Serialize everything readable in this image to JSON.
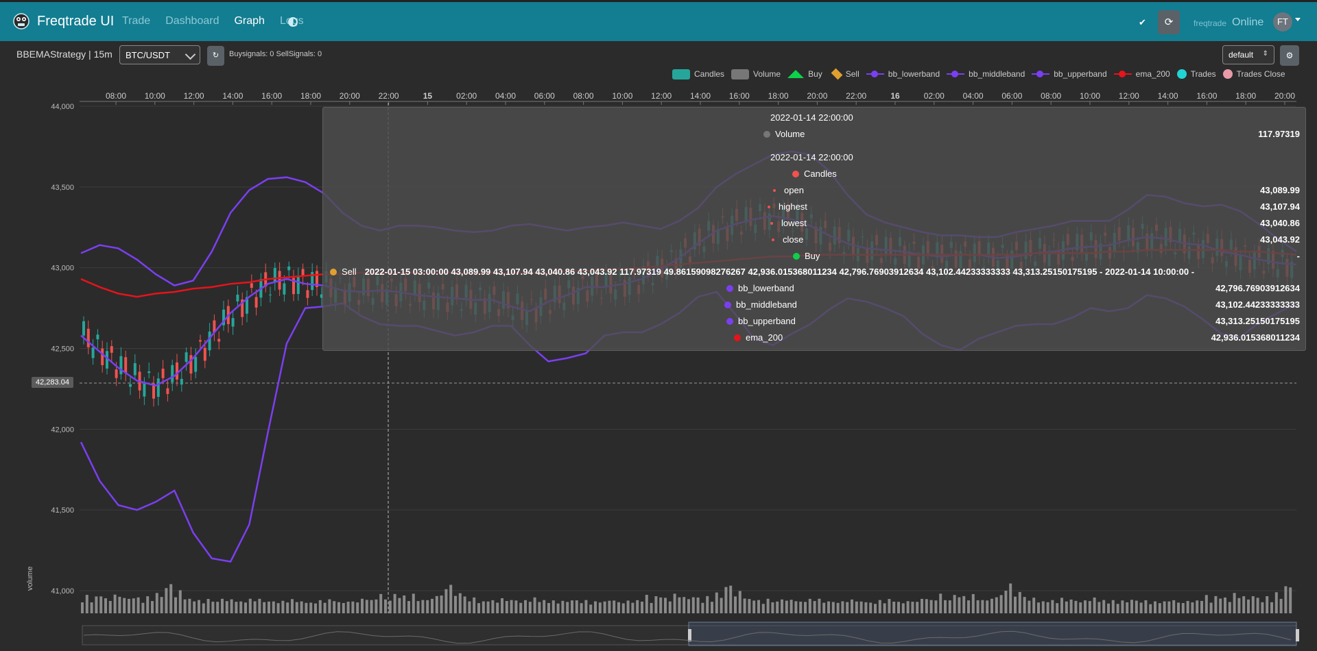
{
  "navbar": {
    "brand": "Freqtrade UI",
    "links": [
      {
        "label": "Trade",
        "active": false
      },
      {
        "label": "Dashboard",
        "active": false
      },
      {
        "label": "Graph",
        "active": true
      },
      {
        "label": "Logs",
        "active": false
      }
    ],
    "check_icon": "check-icon",
    "refresh_icon": "refresh-icon",
    "bot_name": "freqtrade",
    "bot_status": "Online",
    "avatar": "FT"
  },
  "toolbar": {
    "strategy": "BBEMAStrategy | 15m",
    "pair": "BTC/USDT",
    "reload_icon": "reload-icon",
    "signals": "Buysignals: 0   SellSignals: 0",
    "plot_config": "default",
    "settings_icon": "gear-icon"
  },
  "legend": [
    {
      "label": "Candles",
      "symbol": "box",
      "color": "#26a69a"
    },
    {
      "label": "Volume",
      "symbol": "box",
      "color": "#777777"
    },
    {
      "label": "Buy",
      "symbol": "triangle",
      "color": "#0ed04a"
    },
    {
      "label": "Sell",
      "symbol": "diamond",
      "color": "#e0a030"
    },
    {
      "label": "bb_lowerband",
      "symbol": "line",
      "color": "#7b3ff2"
    },
    {
      "label": "bb_middleband",
      "symbol": "line",
      "color": "#7b3ff2"
    },
    {
      "label": "bb_upperband",
      "symbol": "line",
      "color": "#7b3ff2"
    },
    {
      "label": "ema_200",
      "symbol": "line",
      "color": "#e8131b"
    },
    {
      "label": "Trades",
      "symbol": "circle",
      "color": "#22d3d3"
    },
    {
      "label": "Trades Close",
      "symbol": "circle",
      "color": "#e89aa8"
    }
  ],
  "chart_data": {
    "type": "candlestick",
    "x_ticks": [
      "08:00",
      "10:00",
      "12:00",
      "14:00",
      "16:00",
      "18:00",
      "20:00",
      "22:00",
      "15",
      "02:00",
      "04:00",
      "06:00",
      "08:00",
      "10:00",
      "12:00",
      "14:00",
      "16:00",
      "18:00",
      "20:00",
      "22:00",
      "16",
      "02:00",
      "04:00",
      "06:00",
      "08:00",
      "10:00",
      "12:00",
      "14:00",
      "16:00",
      "18:00",
      "20:00"
    ],
    "y_ticks": [
      "44,000",
      "43,500",
      "43,000",
      "42,500",
      "42,000",
      "41,500",
      "41,000"
    ],
    "ylim": [
      41000,
      44000
    ],
    "y2_label": "volume",
    "crosshair_price": "42,283.04",
    "colors": {
      "up": "#26a69a",
      "down": "#ef5350",
      "bands": "#7b3ff2",
      "ema": "#e8131b",
      "volume": "#8a8a8a"
    },
    "series": [
      {
        "name": "bb_upperband",
        "values": [
          43090,
          43140,
          43120,
          43050,
          42960,
          42890,
          42920,
          43100,
          43340,
          43480,
          43550,
          43560,
          43530,
          43460,
          43340,
          43260,
          43230,
          43260,
          43260,
          43250,
          43230,
          43220,
          43230,
          43260,
          43270,
          43250,
          43230,
          43250,
          43260,
          43280,
          43260,
          43240,
          43290,
          43370,
          43500,
          43580,
          43640,
          43700,
          43720,
          43700,
          43600,
          43450,
          43330,
          43280,
          43250,
          43220,
          43200,
          43200,
          43190,
          43190,
          43220,
          43240,
          43260,
          43290,
          43290,
          43290,
          43360,
          43450,
          43440,
          43400,
          43380,
          43390,
          43350,
          43270,
          43180,
          43100
        ]
      },
      {
        "name": "bb_middleband",
        "values": [
          42580,
          42480,
          42380,
          42300,
          42270,
          42330,
          42440,
          42580,
          42720,
          42820,
          42900,
          42930,
          42900,
          42890,
          42860,
          42850,
          42860,
          42850,
          42830,
          42820,
          42810,
          42800,
          42800,
          42760,
          42730,
          42790,
          42830,
          42880,
          42880,
          42900,
          42930,
          42990,
          43060,
          43150,
          43230,
          43270,
          43300,
          43320,
          43300,
          43260,
          43200,
          43150,
          43120,
          43110,
          43100,
          43080,
          43070,
          43080,
          43080,
          43060,
          43070,
          43090,
          43100,
          43120,
          43130,
          43140,
          43170,
          43190,
          43180,
          43150,
          43140,
          43100,
          43080,
          43050,
          43030,
          43020
        ]
      },
      {
        "name": "bb_lowerband",
        "values": [
          41920,
          41680,
          41530,
          41500,
          41550,
          41620,
          41360,
          41200,
          41180,
          41410,
          41980,
          42530,
          42750,
          42760,
          42780,
          42700,
          42650,
          42640,
          42640,
          42610,
          42580,
          42600,
          42640,
          42640,
          42520,
          42420,
          42440,
          42470,
          42580,
          42600,
          42600,
          42650,
          42720,
          42820,
          42850,
          42710,
          42560,
          42520,
          42590,
          42650,
          42740,
          42810,
          42790,
          42750,
          42700,
          42590,
          42520,
          42490,
          42560,
          42600,
          42640,
          42650,
          42650,
          42690,
          42750,
          42730,
          42750,
          42830,
          42810,
          42760,
          42680,
          42590,
          42570,
          42660,
          42720,
          42780
        ]
      },
      {
        "name": "ema_200",
        "values": [
          42930,
          42880,
          42840,
          42820,
          42840,
          42850,
          42870,
          42880,
          42900,
          42910,
          42930,
          42940,
          42950,
          42960,
          42960,
          42970,
          42970,
          42970,
          42970,
          42970,
          42970,
          42970,
          42970,
          42970,
          42970,
          42970,
          42980,
          42980,
          42990,
          42990,
          43000,
          43010,
          43020,
          43030,
          43040,
          43050,
          43060,
          43070,
          43070,
          43080,
          43080,
          43080,
          43080,
          43080,
          43080,
          43080,
          43080,
          43080,
          43080,
          43080,
          43080,
          43090,
          43090,
          43090,
          43090,
          43100,
          43100,
          43110,
          43110,
          43110,
          43110,
          43110,
          43100,
          43100,
          43090,
          43080
        ]
      }
    ],
    "volume_levels": [
      0.35,
      0.5,
      0.3,
      0.45,
      0.55,
      0.4,
      0.3,
      0.6,
      0.45,
      0.5,
      0.35,
      0.55,
      0.4,
      0.3,
      0.45,
      0.35,
      0.6,
      0.5,
      0.85,
      1.0,
      0.5,
      0.7,
      0.45,
      0.35,
      0.4,
      0.3,
      0.25,
      0.35,
      0.3,
      0.25,
      0.4,
      0.3,
      0.35,
      0.3,
      0.25,
      0.3,
      0.35,
      0.4,
      0.35,
      0.3,
      0.25,
      0.3,
      0.2,
      0.3,
      0.25,
      0.35,
      0.3,
      0.25,
      0.3,
      0.2,
      0.25,
      0.3,
      0.25,
      0.35,
      0.3,
      0.25,
      0.2,
      0.3,
      0.25,
      0.3
    ]
  },
  "tooltip": {
    "time1": "2022-01-14 22:00:00",
    "volume_label": "Volume",
    "volume_value": "117.97319",
    "time2": "2022-01-14 22:00:00",
    "candles_label": "Candles",
    "open_label": "open",
    "open_value": "43,089.99",
    "highest_label": "highest",
    "highest_value": "43,107.94",
    "lowest_label": "lowest",
    "lowest_value": "43,040.86",
    "close_label": "close",
    "close_value": "43,043.92",
    "buy_label": "Buy",
    "buy_value": "-",
    "sell_label": "Sell",
    "sell_values": "2022-01-15 03:00:00   43,089.99   43,107.94   43,040.86   43,043.92   117.97319   49.86159098276267   42,936.015368011234   42,796.76903912634   43,102.44233333333   43,313.25150175195   -   2022-01-14 10:00:00   -",
    "bb_lowerband_label": "bb_lowerband",
    "bb_lowerband_value": "42,796.76903912634",
    "bb_middleband_label": "bb_middleband",
    "bb_middleband_value": "43,102.44233333333",
    "bb_upperband_label": "bb_upperband",
    "bb_upperband_value": "43,313.25150175195",
    "ema_label": "ema_200",
    "ema_value": "42,936.015368011234"
  }
}
